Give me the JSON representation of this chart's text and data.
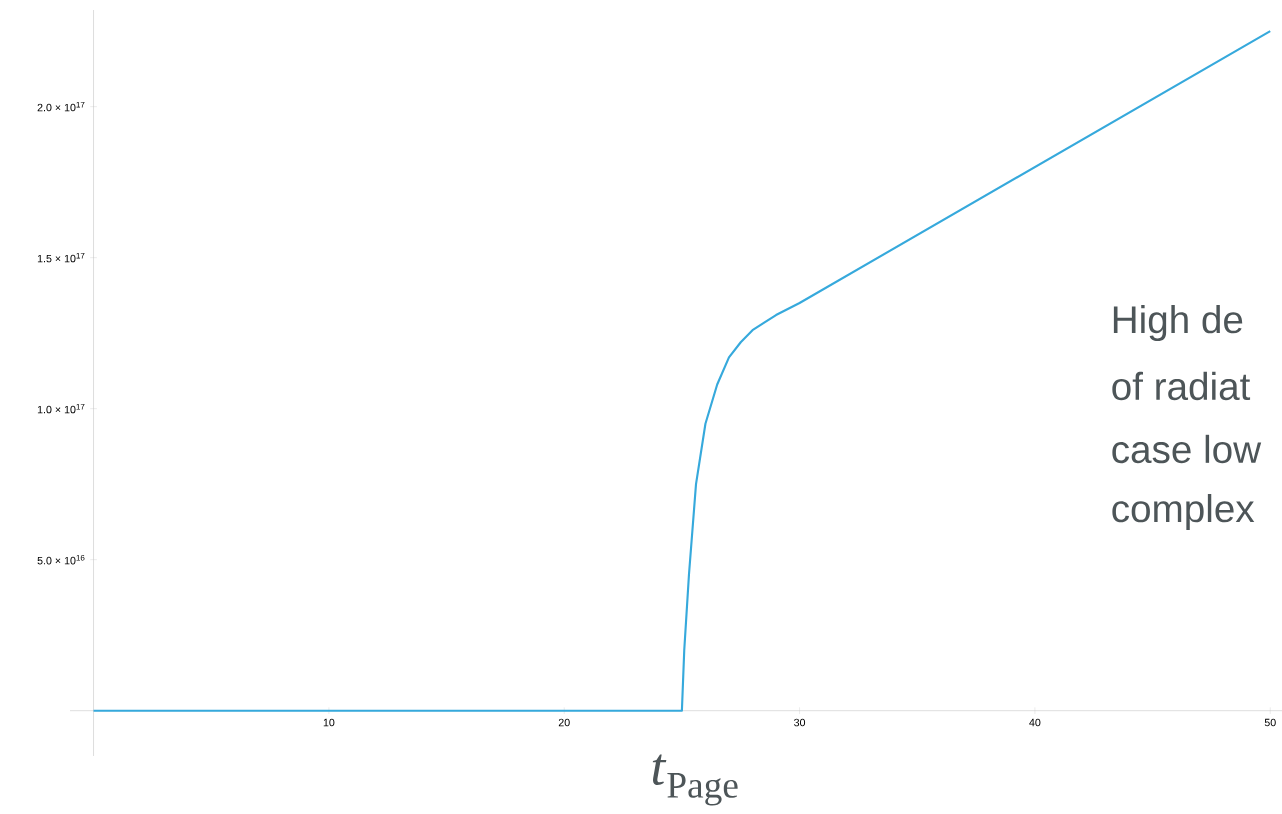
{
  "chart_data": {
    "type": "line",
    "xlabel": "*t*$_{Page}$",
    "x": [
      0,
      25,
      25.1,
      25.3,
      25.6,
      26,
      26.5,
      27,
      27.5,
      28,
      29,
      30,
      40,
      50
    ],
    "series": [
      {
        "color": "#36a9dc",
        "values": [
          0,
          0,
          2e+16,
          4.5e+16,
          7.5e+16,
          9.5e+16,
          1.08e+17,
          1.17e+17,
          1.22e+17,
          1.26e+17,
          1.31e+17,
          1.35e+17,
          1.8e+17,
          2.25e+17
        ]
      }
    ],
    "xlim": [
      -1,
      50.5
    ],
    "ylim": [
      -1.5e+16,
      2.32e+17
    ],
    "xticks": [
      10,
      20,
      30,
      40,
      50
    ],
    "yticks": [
      {
        "value": 5e+16,
        "label": "5.0 × 10$^{16}$"
      },
      {
        "value": 1e+17,
        "label": "1.0 × 10$^{17}$"
      },
      {
        "value": 1.5e+17,
        "label": "1.5 × 10$^{17}$"
      },
      {
        "value": 2e+17,
        "label": "2.0 × 10$^{17}$"
      }
    ],
    "annotations": [
      "High de",
      "of radiat",
      "case low",
      "complex"
    ]
  }
}
